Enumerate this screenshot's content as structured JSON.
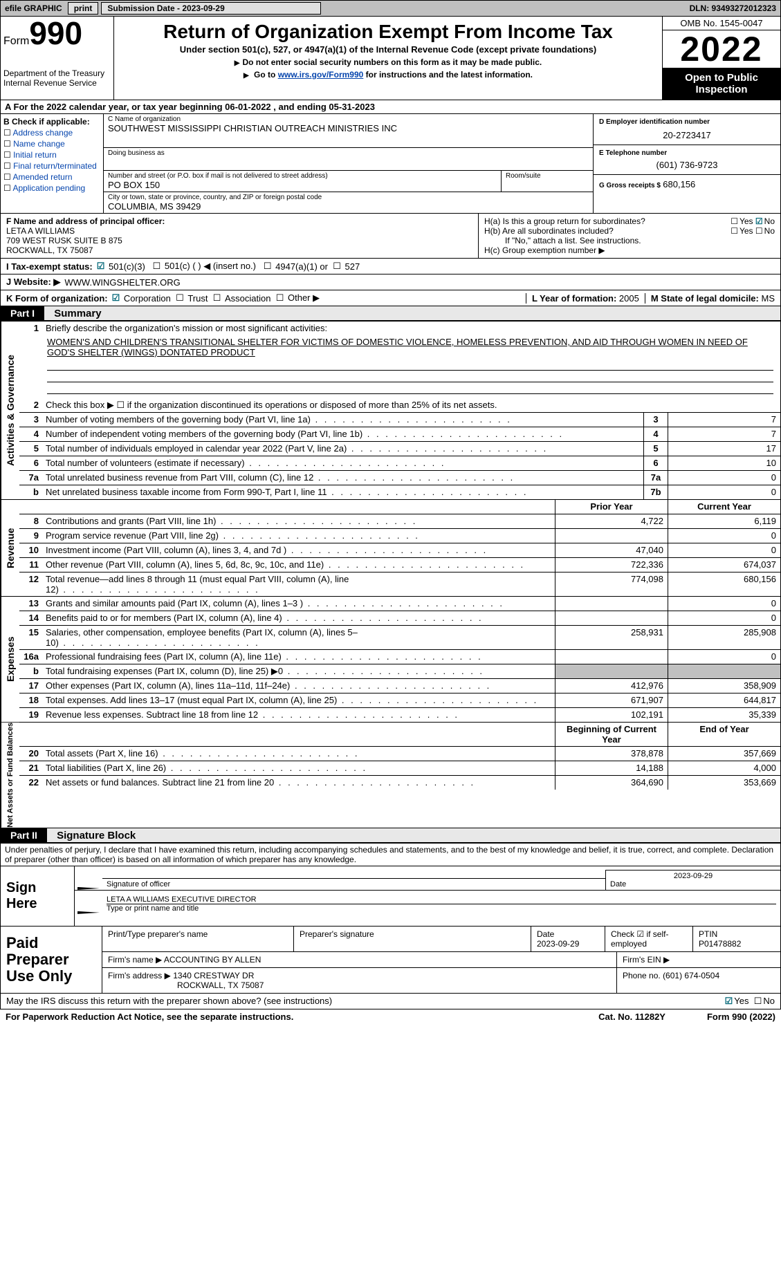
{
  "topbar": {
    "efile": "efile GRAPHIC",
    "print": "print",
    "sub_lbl": "Submission Date - 2023-09-29",
    "dln_lbl": "DLN: 93493272012323"
  },
  "header": {
    "form_word": "Form",
    "form_num": "990",
    "dept": "Department of the Treasury",
    "irs": "Internal Revenue Service",
    "title": "Return of Organization Exempt From Income Tax",
    "sub": "Under section 501(c), 527, or 4947(a)(1) of the Internal Revenue Code (except private foundations)",
    "note1": "Do not enter social security numbers on this form as it may be made public.",
    "note2_pre": "Go to ",
    "note2_link": "www.irs.gov/Form990",
    "note2_post": " for instructions and the latest information.",
    "omb": "OMB No. 1545-0047",
    "year": "2022",
    "open": "Open to Public Inspection"
  },
  "rowA": "For the 2022 calendar year, or tax year beginning 06-01-2022    , and ending 05-31-2023",
  "B": {
    "hdr": "B Check if applicable:",
    "items": [
      "Address change",
      "Name change",
      "Initial return",
      "Final return/terminated",
      "Amended return",
      "Application pending"
    ]
  },
  "C": {
    "name_lbl": "C Name of organization",
    "name": "SOUTHWEST MISSISSIPPI CHRISTIAN OUTREACH MINISTRIES INC",
    "dba_lbl": "Doing business as",
    "dba": "",
    "street_lbl": "Number and street (or P.O. box if mail is not delivered to street address)",
    "street": "PO BOX 150",
    "room_lbl": "Room/suite",
    "room": "",
    "city_lbl": "City or town, state or province, country, and ZIP or foreign postal code",
    "city": "COLUMBIA, MS  39429"
  },
  "D": {
    "lbl": "D Employer identification number",
    "val": "20-2723417"
  },
  "E": {
    "lbl": "E Telephone number",
    "val": "(601) 736-9723"
  },
  "G": {
    "lbl": "G Gross receipts $",
    "val": "680,156"
  },
  "F": {
    "lbl": "F  Name and address of principal officer:",
    "line1": "LETA A WILLIAMS",
    "line2": "709 WEST RUSK SUITE B 875",
    "line3": "ROCKWALL, TX  75087"
  },
  "H": {
    "a_lbl": "H(a)  Is this a group return for subordinates?",
    "b_lbl": "H(b)  Are all subordinates included?",
    "b_note": "If \"No,\" attach a list. See instructions.",
    "c_lbl": "H(c)  Group exemption number ▶",
    "yes": "Yes",
    "no": "No"
  },
  "I": {
    "lbl": "I    Tax-exempt status:",
    "opts": [
      "501(c)(3)",
      "501(c) (  ) ◀ (insert no.)",
      "4947(a)(1) or",
      "527"
    ]
  },
  "J": {
    "lbl": "J   Website: ▶",
    "val": "WWW.WINGSHELTER.ORG"
  },
  "K": {
    "lbl": "K Form of organization:",
    "opts": [
      "Corporation",
      "Trust",
      "Association",
      "Other ▶"
    ]
  },
  "L": {
    "lbl": "L Year of formation:",
    "val": "2005"
  },
  "M": {
    "lbl": "M State of legal domicile:",
    "val": "MS"
  },
  "partI": {
    "num": "Part I",
    "title": "Summary"
  },
  "summary": {
    "sec1_lbl": "Activities & Governance",
    "q1": "Briefly describe the organization's mission or most significant activities:",
    "mission": "WOMEN'S AND CHILDREN'S TRANSITIONAL SHELTER FOR VICTIMS OF DOMESTIC VIOLENCE, HOMELESS PREVENTION, AND AID THROUGH WOMEN IN NEED OF GOD'S SHELTER (WINGS) DONTATED PRODUCT",
    "q2": "Check this box ▶ ☐  if the organization discontinued its operations or disposed of more than 25% of its net assets.",
    "lines_gov": [
      {
        "n": "3",
        "d": "Number of voting members of the governing body (Part VI, line 1a)",
        "box": "3",
        "v": "7"
      },
      {
        "n": "4",
        "d": "Number of independent voting members of the governing body (Part VI, line 1b)",
        "box": "4",
        "v": "7"
      },
      {
        "n": "5",
        "d": "Total number of individuals employed in calendar year 2022 (Part V, line 2a)",
        "box": "5",
        "v": "17"
      },
      {
        "n": "6",
        "d": "Total number of volunteers (estimate if necessary)",
        "box": "6",
        "v": "10"
      },
      {
        "n": "7a",
        "d": "Total unrelated business revenue from Part VIII, column (C), line 12",
        "box": "7a",
        "v": "0"
      },
      {
        "n": "b",
        "d": "Net unrelated business taxable income from Form 990-T, Part I, line 11",
        "box": "7b",
        "v": "0"
      }
    ],
    "sec2_lbl": "Revenue",
    "col_prior": "Prior Year",
    "col_curr": "Current Year",
    "lines_rev": [
      {
        "n": "8",
        "d": "Contributions and grants (Part VIII, line 1h)",
        "p": "4,722",
        "c": "6,119"
      },
      {
        "n": "9",
        "d": "Program service revenue (Part VIII, line 2g)",
        "p": "",
        "c": "0"
      },
      {
        "n": "10",
        "d": "Investment income (Part VIII, column (A), lines 3, 4, and 7d )",
        "p": "47,040",
        "c": "0"
      },
      {
        "n": "11",
        "d": "Other revenue (Part VIII, column (A), lines 5, 6d, 8c, 9c, 10c, and 11e)",
        "p": "722,336",
        "c": "674,037"
      },
      {
        "n": "12",
        "d": "Total revenue—add lines 8 through 11 (must equal Part VIII, column (A), line 12)",
        "p": "774,098",
        "c": "680,156"
      }
    ],
    "sec3_lbl": "Expenses",
    "lines_exp": [
      {
        "n": "13",
        "d": "Grants and similar amounts paid (Part IX, column (A), lines 1–3 )",
        "p": "",
        "c": "0"
      },
      {
        "n": "14",
        "d": "Benefits paid to or for members (Part IX, column (A), line 4)",
        "p": "",
        "c": "0"
      },
      {
        "n": "15",
        "d": "Salaries, other compensation, employee benefits (Part IX, column (A), lines 5–10)",
        "p": "258,931",
        "c": "285,908"
      },
      {
        "n": "16a",
        "d": "Professional fundraising fees (Part IX, column (A), line 11e)",
        "p": "",
        "c": "0"
      },
      {
        "n": "b",
        "d": "Total fundraising expenses (Part IX, column (D), line 25) ▶0",
        "p": "SHADE",
        "c": "SHADE"
      },
      {
        "n": "17",
        "d": "Other expenses (Part IX, column (A), lines 11a–11d, 11f–24e)",
        "p": "412,976",
        "c": "358,909"
      },
      {
        "n": "18",
        "d": "Total expenses. Add lines 13–17 (must equal Part IX, column (A), line 25)",
        "p": "671,907",
        "c": "644,817"
      },
      {
        "n": "19",
        "d": "Revenue less expenses. Subtract line 18 from line 12",
        "p": "102,191",
        "c": "35,339"
      }
    ],
    "sec4_lbl": "Net Assets or Fund Balances",
    "col_beg": "Beginning of Current Year",
    "col_end": "End of Year",
    "lines_net": [
      {
        "n": "20",
        "d": "Total assets (Part X, line 16)",
        "p": "378,878",
        "c": "357,669"
      },
      {
        "n": "21",
        "d": "Total liabilities (Part X, line 26)",
        "p": "14,188",
        "c": "4,000"
      },
      {
        "n": "22",
        "d": "Net assets or fund balances. Subtract line 21 from line 20",
        "p": "364,690",
        "c": "353,669"
      }
    ]
  },
  "partII": {
    "num": "Part II",
    "title": "Signature Block"
  },
  "sig": {
    "note": "Under penalties of perjury, I declare that I have examined this return, including accompanying schedules and statements, and to the best of my knowledge and belief, it is true, correct, and complete. Declaration of preparer (other than officer) is based on all information of which preparer has any knowledge.",
    "sign_here": "Sign Here",
    "sig_officer": "Signature of officer",
    "date": "Date",
    "date_val": "2023-09-29",
    "name_line": "LETA A WILLIAMS  EXECUTIVE DIRECTOR",
    "name_lbl": "Type or print name and title"
  },
  "prep": {
    "title": "Paid Preparer Use Only",
    "print_name_lbl": "Print/Type preparer's name",
    "print_name": "",
    "sig_lbl": "Preparer's signature",
    "date_lbl": "Date",
    "date": "2023-09-29",
    "check_lbl": "Check ☑ if self-employed",
    "ptin_lbl": "PTIN",
    "ptin": "P01478882",
    "firm_name_lbl": "Firm's name      ▶",
    "firm_name": "ACCOUNTING BY ALLEN",
    "firm_ein_lbl": "Firm's EIN ▶",
    "firm_ein": "",
    "firm_addr_lbl": "Firm's address ▶",
    "firm_addr1": "1340 CRESTWAY DR",
    "firm_addr2": "ROCKWALL, TX  75087",
    "phone_lbl": "Phone no.",
    "phone": "(601) 674-0504"
  },
  "footer": {
    "discuss": "May the IRS discuss this return with the preparer shown above? (see instructions)",
    "yes": "Yes",
    "no": "No",
    "pra": "For Paperwork Reduction Act Notice, see the separate instructions.",
    "cat": "Cat. No. 11282Y",
    "form": "Form 990 (2022)"
  }
}
